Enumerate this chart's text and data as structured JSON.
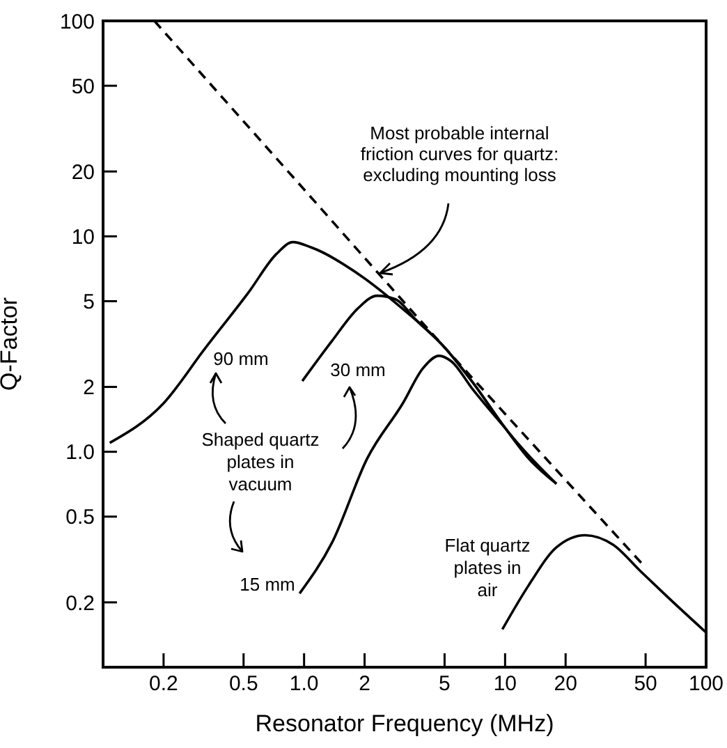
{
  "chart_data": {
    "type": "line",
    "xlabel": "Resonator Frequency (MHz)",
    "ylabel": "Q-Factor",
    "log": "xy",
    "xlim": [
      0.1,
      100
    ],
    "ylim": [
      0.1,
      100
    ],
    "xticks": [
      0.2,
      0.5,
      {
        "value": 1,
        "label": "1.0"
      },
      2,
      5,
      10,
      20,
      50,
      100
    ],
    "yticks": [
      0.2,
      0.5,
      {
        "value": 1,
        "label": "1.0"
      },
      2,
      5,
      10,
      20,
      50,
      100
    ],
    "marker": "none",
    "series": [
      {
        "name": "Most probable internal friction curves for quartz: excluding mounting loss",
        "color": "#000000",
        "line_style": "dashed",
        "x": [
          0.18,
          1,
          5,
          10,
          50
        ],
        "values": [
          100,
          16.5,
          3.05,
          1.5,
          0.29
        ]
      },
      {
        "name": "90 mm",
        "color": "#000000",
        "line_style": "solid",
        "x": [
          0.108,
          0.2,
          0.32,
          0.53,
          0.73,
          0.88,
          1.08,
          1.9,
          3.1,
          5,
          6.9,
          10,
          13.1,
          18
        ],
        "values": [
          1.1,
          1.68,
          3.0,
          5.5,
          8.3,
          9.4,
          8.9,
          6.6,
          4.6,
          3.05,
          2.1,
          1.29,
          0.93,
          0.71
        ]
      },
      {
        "name": "30 mm",
        "color": "#000000",
        "line_style": "solid",
        "x": [
          0.98,
          1.38,
          1.84,
          2.31,
          2.85,
          3.6,
          5,
          6.9,
          10,
          18
        ],
        "values": [
          2.13,
          3.28,
          4.6,
          5.3,
          5.1,
          4.1,
          3.05,
          2.1,
          1.29,
          0.71
        ]
      },
      {
        "name": "15 mm",
        "color": "#000000",
        "line_style": "solid",
        "x": [
          0.95,
          1.38,
          2.06,
          3.1,
          3.9,
          4.7,
          5.4,
          6.9,
          10
        ],
        "values": [
          0.22,
          0.38,
          0.93,
          1.68,
          2.44,
          2.79,
          2.63,
          1.95,
          1.29
        ]
      },
      {
        "name": "Flat quartz plates in air",
        "color": "#000000",
        "line_style": "solid",
        "x": [
          9.7,
          13.1,
          18,
          25,
          34.5,
          47,
          65,
          100
        ],
        "values": [
          0.15,
          0.24,
          0.36,
          0.41,
          0.37,
          0.28,
          0.21,
          0.145
        ]
      }
    ],
    "annotations": [
      "Shaped quartz plates in vacuum"
    ]
  }
}
